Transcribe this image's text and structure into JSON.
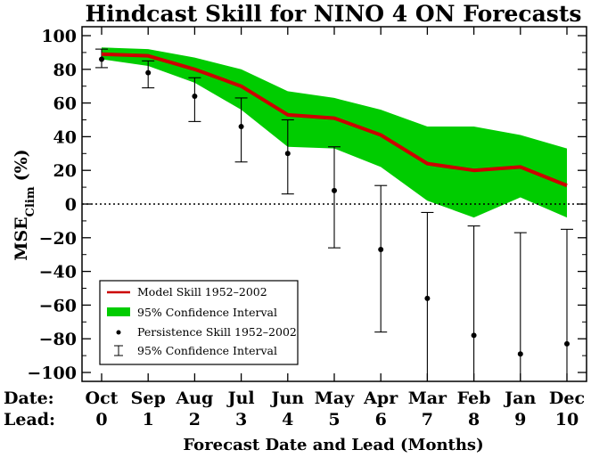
{
  "chart_data": {
    "type": "line",
    "title": "Hindcast Skill for NINO 4 ON Forecasts",
    "ylabel": "MSE",
    "ylabel_sub": "Clim",
    "ylabel_unit": "(%)",
    "xlabel": "Forecast Date and Lead (Months)",
    "row_label_date": "Date:",
    "row_label_lead": "Lead:",
    "categories": [
      "Oct",
      "Sep",
      "Aug",
      "Jul",
      "Jun",
      "May",
      "Apr",
      "Mar",
      "Feb",
      "Jan",
      "Dec"
    ],
    "leads": [
      "0",
      "1",
      "2",
      "3",
      "4",
      "5",
      "6",
      "7",
      "8",
      "9",
      "10"
    ],
    "ylim": [
      -105,
      105
    ],
    "yticks": [
      100,
      80,
      60,
      40,
      20,
      0,
      -20,
      -40,
      -60,
      -80,
      -100
    ],
    "colors": {
      "model": "#cc0000",
      "band": "#00cc00",
      "persistence": "#000000"
    },
    "series": [
      {
        "name": "Model Skill 1952–2002",
        "values": [
          89,
          88,
          80,
          70,
          53,
          51,
          41,
          24,
          20,
          22,
          11
        ]
      },
      {
        "name": "95% Confidence Interval",
        "upper": [
          93,
          92,
          87,
          80,
          67,
          63,
          56,
          46,
          46,
          41,
          33
        ],
        "lower": [
          86,
          82,
          72,
          56,
          34,
          33,
          22,
          2,
          -8,
          4,
          -8
        ]
      },
      {
        "name": "Persistence Skill 1952–2002",
        "values": [
          86,
          78,
          64,
          46,
          30,
          8,
          -27,
          -56,
          -78,
          -89,
          -83
        ]
      },
      {
        "name": "95% Confidence Interval",
        "upper": [
          92,
          85,
          75,
          63,
          50,
          34,
          11,
          -5,
          -13,
          -17,
          -15
        ],
        "lower": [
          81,
          69,
          49,
          25,
          6,
          -26,
          -76,
          -105,
          -105,
          -105,
          -105
        ]
      }
    ],
    "zero_line": "dotted",
    "legend_position": "bottom-left"
  }
}
